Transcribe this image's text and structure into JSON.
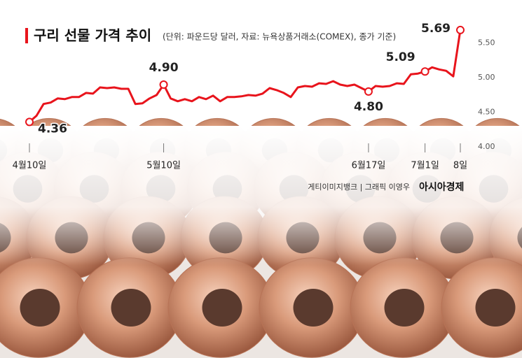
{
  "chart_data": {
    "type": "line",
    "title": "구리 선물 가격 추이",
    "subtitle": "(단위: 파운드당 달러, 자료: 뉴욕상품거래소(COMEX), 종가 기준)",
    "source": "게티이미지뱅크 | 그래픽 이영우",
    "brand": "아시아경제",
    "categories": [
      "4월10일",
      null,
      null,
      null,
      null,
      null,
      null,
      null,
      null,
      null,
      null,
      null,
      null,
      null,
      null,
      null,
      null,
      null,
      null,
      "5월10일",
      null,
      null,
      null,
      null,
      null,
      null,
      null,
      null,
      null,
      null,
      null,
      null,
      null,
      null,
      null,
      null,
      null,
      null,
      null,
      null,
      null,
      null,
      null,
      null,
      null,
      null,
      null,
      null,
      "6월17일",
      null,
      null,
      null,
      null,
      null,
      null,
      null,
      "7월1일",
      null,
      null,
      null,
      null,
      "8일"
    ],
    "values": [
      4.36,
      4.45,
      4.62,
      4.64,
      4.7,
      4.69,
      4.72,
      4.72,
      4.78,
      4.77,
      4.86,
      4.85,
      4.86,
      4.84,
      4.84,
      4.62,
      4.63,
      4.7,
      4.75,
      4.9,
      4.7,
      4.66,
      4.69,
      4.66,
      4.72,
      4.69,
      4.74,
      4.66,
      4.72,
      4.72,
      4.73,
      4.75,
      4.74,
      4.77,
      4.85,
      4.82,
      4.78,
      4.72,
      4.86,
      4.88,
      4.87,
      4.92,
      4.91,
      4.95,
      4.9,
      4.88,
      4.9,
      4.85,
      4.8,
      4.88,
      4.87,
      4.88,
      4.92,
      4.91,
      5.05,
      5.06,
      5.09,
      5.15,
      5.12,
      5.1,
      5.02,
      5.69
    ],
    "value_labels": [
      "4.36",
      null,
      null,
      null,
      null,
      null,
      null,
      null,
      null,
      null,
      null,
      null,
      null,
      null,
      null,
      null,
      null,
      null,
      null,
      "4.90",
      null,
      null,
      null,
      null,
      null,
      null,
      null,
      null,
      null,
      null,
      null,
      null,
      null,
      null,
      null,
      null,
      null,
      null,
      null,
      null,
      null,
      null,
      null,
      null,
      null,
      null,
      null,
      null,
      "4.80",
      null,
      null,
      null,
      null,
      null,
      null,
      null,
      "5.09",
      null,
      null,
      null,
      null,
      "5.69"
    ],
    "color": "#e8141c",
    "ylim": [
      4.0,
      5.75
    ],
    "yticks": [
      {
        "value": 4,
        "label": "4.00"
      },
      {
        "value": 4.5,
        "label": "4.50"
      },
      {
        "value": 5,
        "label": "5.00"
      },
      {
        "value": 5.5,
        "label": "5.50"
      }
    ]
  }
}
